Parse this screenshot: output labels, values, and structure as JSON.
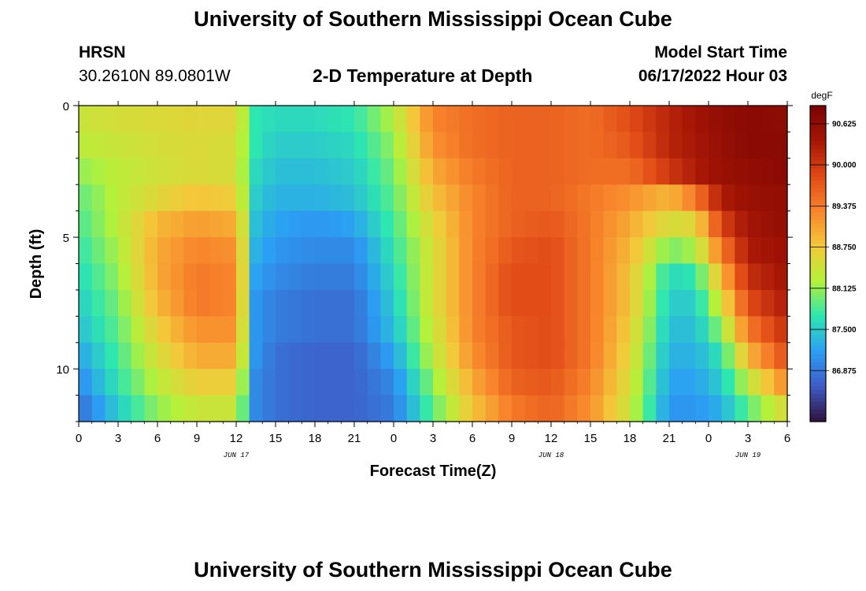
{
  "page": {
    "main_title": "University of Southern Mississippi Ocean Cube",
    "footer_title": "University of Southern Mississippi Ocean Cube",
    "station_name": "HRSN",
    "station_coords": "30.2610N  89.0801W",
    "plot_title": "2-D Temperature at Depth",
    "start_time_label": "Model Start Time",
    "start_time_value": "06/17/2022 Hour 03"
  },
  "chart_data": {
    "type": "heatmap",
    "title": "2-D Temperature at Depth",
    "xlabel": "Forecast Time(Z)",
    "ylabel": "Depth (ft)",
    "units": "degF",
    "x_start_hour": 0,
    "x_end_hour": 54,
    "x_ticks": [
      {
        "hour": 0,
        "label": "0"
      },
      {
        "hour": 3,
        "label": "3"
      },
      {
        "hour": 6,
        "label": "6"
      },
      {
        "hour": 9,
        "label": "9"
      },
      {
        "hour": 12,
        "label": "12"
      },
      {
        "hour": 15,
        "label": "15"
      },
      {
        "hour": 18,
        "label": "18"
      },
      {
        "hour": 21,
        "label": "21"
      },
      {
        "hour": 24,
        "label": "0"
      },
      {
        "hour": 27,
        "label": "3"
      },
      {
        "hour": 30,
        "label": "6"
      },
      {
        "hour": 33,
        "label": "9"
      },
      {
        "hour": 36,
        "label": "12"
      },
      {
        "hour": 39,
        "label": "15"
      },
      {
        "hour": 42,
        "label": "18"
      },
      {
        "hour": 45,
        "label": "21"
      },
      {
        "hour": 48,
        "label": "0"
      },
      {
        "hour": 51,
        "label": "3"
      },
      {
        "hour": 54,
        "label": "6"
      }
    ],
    "date_labels": [
      {
        "hour": 12,
        "label": "JUN 17"
      },
      {
        "hour": 36,
        "label": "JUN 18"
      },
      {
        "hour": 51,
        "label": "JUN 19"
      }
    ],
    "y_range": [
      0,
      12
    ],
    "y_ticks": [
      0,
      5,
      10
    ],
    "colorbar_range": [
      86.1,
      90.9
    ],
    "colorbar_ticks": [
      "90.625",
      "90.000",
      "89.375",
      "88.750",
      "88.125",
      "87.500",
      "86.875"
    ],
    "colormap": [
      "#30123b",
      "#3e5bc6",
      "#2b9ff4",
      "#2ee6b0",
      "#b4f13a",
      "#f4c83a",
      "#f8852c",
      "#e04816",
      "#a51505",
      "#7a0403"
    ],
    "depth_layers_ft": [
      0.5,
      1.5,
      2.5,
      3.5,
      4.5,
      5.5,
      6.5,
      7.5,
      8.5,
      9.5,
      10.5,
      11.5
    ],
    "profile_hours": [
      0,
      3,
      6,
      9,
      12,
      13.5,
      15,
      18,
      21,
      24,
      27,
      30,
      33,
      36,
      39,
      42,
      45,
      47,
      49,
      51,
      54
    ],
    "profiles": [
      [
        88.4,
        88.5,
        88.55,
        88.6,
        88.6,
        87.7,
        87.6,
        87.6,
        87.7,
        88.25,
        89.3,
        89.5,
        89.6,
        89.6,
        89.5,
        89.8,
        90.2,
        90.4,
        90.6,
        90.7,
        90.65
      ],
      [
        88.3,
        88.4,
        88.5,
        88.55,
        88.5,
        87.7,
        87.5,
        87.5,
        87.6,
        88.1,
        89.2,
        89.5,
        89.6,
        89.6,
        89.5,
        89.7,
        90.2,
        90.35,
        90.55,
        90.7,
        90.7
      ],
      [
        88.1,
        88.3,
        88.45,
        88.55,
        88.5,
        87.6,
        87.4,
        87.4,
        87.5,
        88.0,
        89.0,
        89.4,
        89.6,
        89.6,
        89.5,
        89.5,
        90.0,
        90.3,
        90.5,
        90.6,
        90.7
      ],
      [
        87.9,
        88.3,
        88.6,
        88.8,
        88.7,
        87.5,
        87.3,
        87.3,
        87.4,
        87.9,
        88.8,
        89.3,
        89.6,
        89.6,
        89.4,
        89.2,
        88.9,
        89.4,
        90.3,
        90.5,
        90.6
      ],
      [
        87.8,
        88.3,
        88.9,
        89.1,
        89.0,
        87.4,
        87.2,
        87.1,
        87.2,
        87.8,
        88.6,
        89.3,
        89.6,
        89.7,
        89.4,
        89.0,
        88.5,
        88.6,
        89.9,
        90.4,
        90.6
      ],
      [
        87.7,
        88.2,
        89.0,
        89.3,
        89.2,
        87.3,
        87.1,
        87.0,
        87.0,
        87.7,
        88.5,
        89.3,
        89.7,
        89.8,
        89.4,
        88.9,
        88.0,
        88.2,
        89.4,
        90.3,
        90.5
      ],
      [
        87.6,
        88.1,
        89.0,
        89.4,
        89.3,
        87.2,
        87.0,
        86.9,
        86.9,
        87.6,
        88.5,
        89.3,
        89.8,
        89.8,
        89.4,
        88.8,
        87.6,
        87.7,
        88.9,
        90.1,
        90.4
      ],
      [
        87.5,
        88.0,
        88.9,
        89.4,
        89.3,
        87.1,
        86.9,
        86.8,
        86.8,
        87.5,
        88.5,
        89.3,
        89.8,
        89.8,
        89.4,
        88.8,
        87.5,
        87.5,
        88.5,
        89.8,
        90.3
      ],
      [
        87.4,
        87.9,
        88.7,
        89.2,
        89.2,
        87.1,
        86.9,
        86.8,
        86.8,
        87.4,
        88.4,
        89.3,
        89.7,
        89.8,
        89.4,
        88.7,
        87.4,
        87.4,
        88.1,
        89.4,
        90.1
      ],
      [
        87.2,
        87.8,
        88.5,
        89.0,
        89.0,
        87.1,
        86.8,
        86.7,
        86.7,
        87.2,
        88.3,
        89.2,
        89.7,
        89.8,
        89.4,
        88.6,
        87.3,
        87.3,
        87.7,
        88.9,
        89.8
      ],
      [
        87.0,
        87.7,
        88.3,
        88.7,
        88.7,
        87.0,
        86.8,
        86.7,
        86.7,
        87.0,
        88.1,
        89.0,
        89.6,
        89.7,
        89.3,
        88.5,
        87.2,
        87.2,
        87.5,
        88.3,
        89.3
      ],
      [
        86.8,
        87.5,
        88.1,
        88.4,
        88.4,
        87.0,
        86.8,
        86.7,
        86.7,
        86.9,
        87.9,
        88.8,
        89.4,
        89.6,
        89.2,
        88.4,
        87.1,
        87.1,
        87.3,
        87.9,
        88.6
      ]
    ]
  }
}
